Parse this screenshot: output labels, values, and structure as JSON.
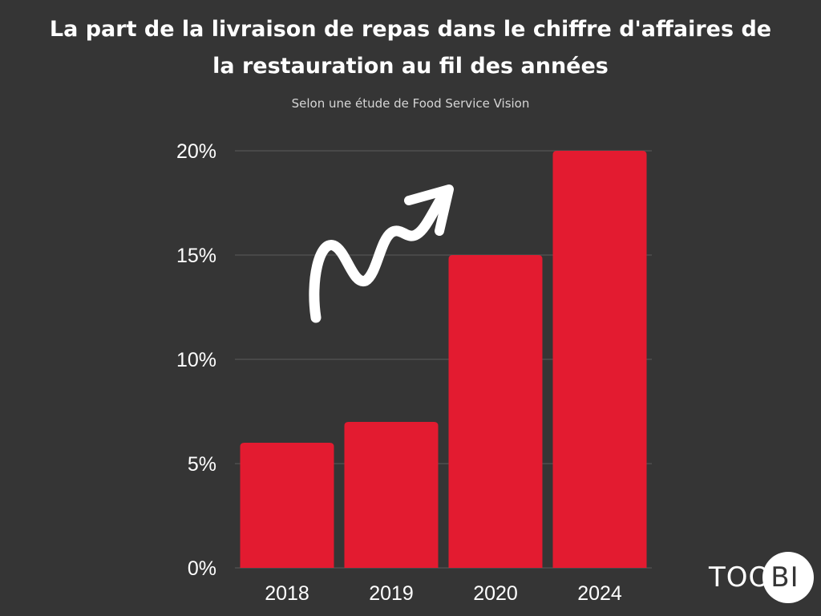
{
  "header": {
    "title_line1": "La part de la livraison de repas dans le chiffre d'affaires de",
    "title_line2": "la restauration au fil des années",
    "subtitle": "Selon une étude de Food Service Vision"
  },
  "logo": {
    "text_light": "TOO",
    "text_dark": "BI"
  },
  "colors": {
    "background": "#353535",
    "bar": "#e31b30",
    "text": "#ffffff",
    "grid": "#5a5a5a"
  },
  "chart_data": {
    "type": "bar",
    "title": "La part de la livraison de repas dans le chiffre d'affaires de la restauration au fil des années",
    "subtitle": "Selon une étude de Food Service Vision",
    "categories": [
      "2018",
      "2019",
      "2020",
      "2024"
    ],
    "values": [
      6,
      7,
      15,
      20
    ],
    "unit": "%",
    "ylim": [
      0,
      20
    ],
    "yticks": [
      0,
      5,
      10,
      15,
      20
    ],
    "ytick_labels": [
      "0%",
      "5%",
      "10%",
      "15%",
      "20%"
    ],
    "xlabel": "",
    "ylabel": "",
    "grid": true,
    "legend": "none",
    "annotation": "white rising zigzag arrow"
  }
}
